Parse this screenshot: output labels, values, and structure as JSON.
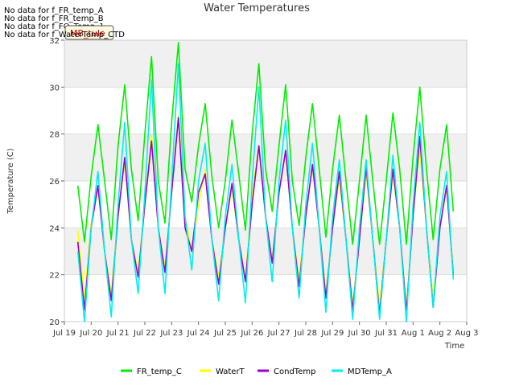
{
  "no_data_messages": [
    "No data for f_FR_temp_A",
    "No data for f_FR_temp_B",
    "No data for f_FO_Temp_1",
    "No data for f_WaterTemp_CTD"
  ],
  "tooltip_label": "MB_tule",
  "chart_data": {
    "type": "line",
    "title": "Water Temperatures",
    "xlabel": "Time",
    "ylabel": "Temperature (C)",
    "ylim": [
      20,
      32
    ],
    "xlim": [
      "2024-07-19",
      "2024-08-03"
    ],
    "y_ticks": [
      20,
      22,
      24,
      26,
      28,
      30,
      32
    ],
    "x_ticks": [
      "Jul 19",
      "Jul 20",
      "Jul 21",
      "Jul 22",
      "Jul 23",
      "Jul 24",
      "Jul 25",
      "Jul 26",
      "Jul 27",
      "Jul 28",
      "Jul 29",
      "Jul 30",
      "Jul 31",
      "Aug 1",
      "Aug 2",
      "Aug 3"
    ],
    "grid": true,
    "background_bands": "alternating grey horizontal bands",
    "legend_position": "bottom",
    "series": [
      {
        "name": "FR_temp_C",
        "color": "#00ee00",
        "x": [
          0.5,
          0.75,
          1.0,
          1.25,
          1.5,
          1.75,
          2.0,
          2.25,
          2.5,
          2.75,
          3.0,
          3.25,
          3.5,
          3.75,
          4.0,
          4.25,
          4.5,
          4.75,
          5.0,
          5.25,
          5.5,
          5.75,
          6.0,
          6.25,
          6.5,
          6.75,
          7.0,
          7.25,
          7.5,
          7.75,
          8.0,
          8.25,
          8.5,
          8.75,
          9.0,
          9.25,
          9.5,
          9.75,
          10.0,
          10.25,
          10.5,
          10.75,
          11.0,
          11.25,
          11.5,
          11.75,
          12.0,
          12.25,
          12.5,
          12.75,
          13.0,
          13.25,
          13.5,
          13.75,
          14.0,
          14.25,
          14.5,
          14.75,
          15.0,
          15.25,
          15.5,
          15.75
        ],
        "values": [
          25.8,
          23.4,
          26.2,
          28.4,
          26.0,
          23.5,
          27.5,
          30.1,
          26.5,
          24.3,
          28.0,
          31.3,
          26.0,
          24.2,
          28.5,
          31.9,
          26.5,
          25.1,
          27.5,
          29.3,
          26.2,
          24.0,
          26.0,
          28.6,
          26.3,
          23.9,
          28.0,
          31.0,
          26.5,
          24.7,
          27.5,
          30.1,
          26.0,
          24.1,
          27.0,
          29.3,
          26.5,
          23.6,
          26.5,
          28.8,
          26.0,
          23.3,
          26.0,
          28.8,
          26.0,
          23.3,
          26.0,
          28.9,
          26.5,
          23.3,
          27.0,
          30.0,
          26.5,
          23.5,
          26.5,
          28.4,
          24.7,
          null,
          null,
          null,
          null,
          null
        ]
      },
      {
        "name": "WaterT",
        "color": "#ffff00",
        "x": [
          0.5,
          0.75,
          1.0,
          1.25,
          1.5,
          1.75,
          2.0,
          2.25,
          2.5,
          2.75,
          3.0,
          3.25,
          3.5,
          3.75,
          4.0,
          4.25,
          4.5,
          4.75,
          5.0,
          5.25,
          5.5,
          5.75,
          6.0,
          6.25,
          6.5,
          6.75,
          7.0,
          7.25,
          7.5,
          7.75,
          8.0,
          8.25,
          8.5,
          8.75,
          9.0,
          9.25,
          9.5,
          9.75,
          10.0,
          10.25,
          10.5,
          10.75,
          11.0,
          11.25,
          11.5,
          11.75,
          12.0,
          12.25,
          12.5,
          12.75,
          13.0,
          13.25,
          13.5,
          13.75,
          14.0,
          14.25,
          14.5,
          14.75,
          15.0
        ],
        "values": [
          23.9,
          21.0,
          24.2,
          25.7,
          23.0,
          21.2,
          24.5,
          26.8,
          23.5,
          22.1,
          25.0,
          28.0,
          24.0,
          22.3,
          25.5,
          28.8,
          24.5,
          23.0,
          25.0,
          26.5,
          23.5,
          21.9,
          24.0,
          25.7,
          23.5,
          21.8,
          25.5,
          27.5,
          24.5,
          22.6,
          25.5,
          27.2,
          24.0,
          21.8,
          24.5,
          26.6,
          24.0,
          21.2,
          24.0,
          26.1,
          23.5,
          20.7,
          23.5,
          26.3,
          23.5,
          20.7,
          23.5,
          26.3,
          24.0,
          20.6,
          24.5,
          27.4,
          24.0,
          21.0,
          24.0,
          25.7,
          22.2,
          null,
          null
        ]
      },
      {
        "name": "CondTemp",
        "color": "#9900cc",
        "x": [
          0.5,
          0.75,
          1.0,
          1.25,
          1.5,
          1.75,
          2.0,
          2.25,
          2.5,
          2.75,
          3.0,
          3.25,
          3.5,
          3.75,
          4.0,
          4.25,
          4.5,
          4.75,
          5.0,
          5.25,
          5.5,
          5.75,
          6.0,
          6.25,
          6.5,
          6.75,
          7.0,
          7.25,
          7.5,
          7.75,
          8.0,
          8.25,
          8.5,
          8.75,
          9.0,
          9.25,
          9.5,
          9.75,
          10.0,
          10.25,
          10.5,
          10.75,
          11.0,
          11.25,
          11.5,
          11.75,
          12.0,
          12.25,
          12.5,
          12.75,
          13.0,
          13.25,
          13.5,
          13.75,
          14.0,
          14.25,
          14.5,
          14.75,
          15.0
        ],
        "values": [
          23.4,
          20.5,
          24.0,
          25.8,
          23.0,
          20.9,
          24.5,
          27.0,
          23.5,
          21.9,
          25.0,
          27.7,
          24.0,
          22.1,
          25.5,
          28.7,
          24.0,
          23.0,
          25.5,
          26.3,
          23.5,
          21.6,
          24.0,
          25.9,
          23.5,
          21.7,
          25.0,
          27.5,
          24.5,
          22.5,
          25.5,
          27.3,
          24.0,
          21.5,
          24.5,
          26.7,
          24.0,
          21.0,
          24.0,
          26.4,
          23.5,
          20.5,
          23.5,
          26.6,
          23.5,
          20.3,
          23.5,
          26.5,
          24.0,
          20.4,
          24.5,
          27.9,
          24.0,
          20.6,
          24.0,
          25.8,
          22.0,
          null,
          null
        ]
      },
      {
        "name": "MDTemp_A",
        "color": "#00eeee",
        "x": [
          0.5,
          0.75,
          1.0,
          1.25,
          1.5,
          1.75,
          2.0,
          2.25,
          2.5,
          2.75,
          3.0,
          3.25,
          3.5,
          3.75,
          4.0,
          4.25,
          4.5,
          4.75,
          5.0,
          5.25,
          5.5,
          5.75,
          6.0,
          6.25,
          6.5,
          6.75,
          7.0,
          7.25,
          7.5,
          7.75,
          8.0,
          8.25,
          8.5,
          8.75,
          9.0,
          9.25,
          9.5,
          9.75,
          10.0,
          10.25,
          10.5,
          10.75,
          11.0,
          11.25,
          11.5,
          11.75,
          12.0,
          12.25,
          12.5,
          12.75,
          13.0,
          13.25,
          13.5,
          13.75,
          14.0,
          14.25,
          14.5,
          14.75,
          15.0
        ],
        "values": [
          23.0,
          20.0,
          24.0,
          26.4,
          23.0,
          20.2,
          25.0,
          28.5,
          23.5,
          21.2,
          25.5,
          30.3,
          24.0,
          21.2,
          26.0,
          31.0,
          24.5,
          22.2,
          26.0,
          27.6,
          23.5,
          20.9,
          24.5,
          26.7,
          23.5,
          20.8,
          26.0,
          30.0,
          24.5,
          21.7,
          26.0,
          28.6,
          24.0,
          21.0,
          25.0,
          27.6,
          24.0,
          20.4,
          24.5,
          26.9,
          23.5,
          20.1,
          24.0,
          26.9,
          23.5,
          20.1,
          23.5,
          27.1,
          24.0,
          20.0,
          25.0,
          28.5,
          24.0,
          20.6,
          24.5,
          26.4,
          21.8,
          null,
          null
        ]
      }
    ]
  }
}
